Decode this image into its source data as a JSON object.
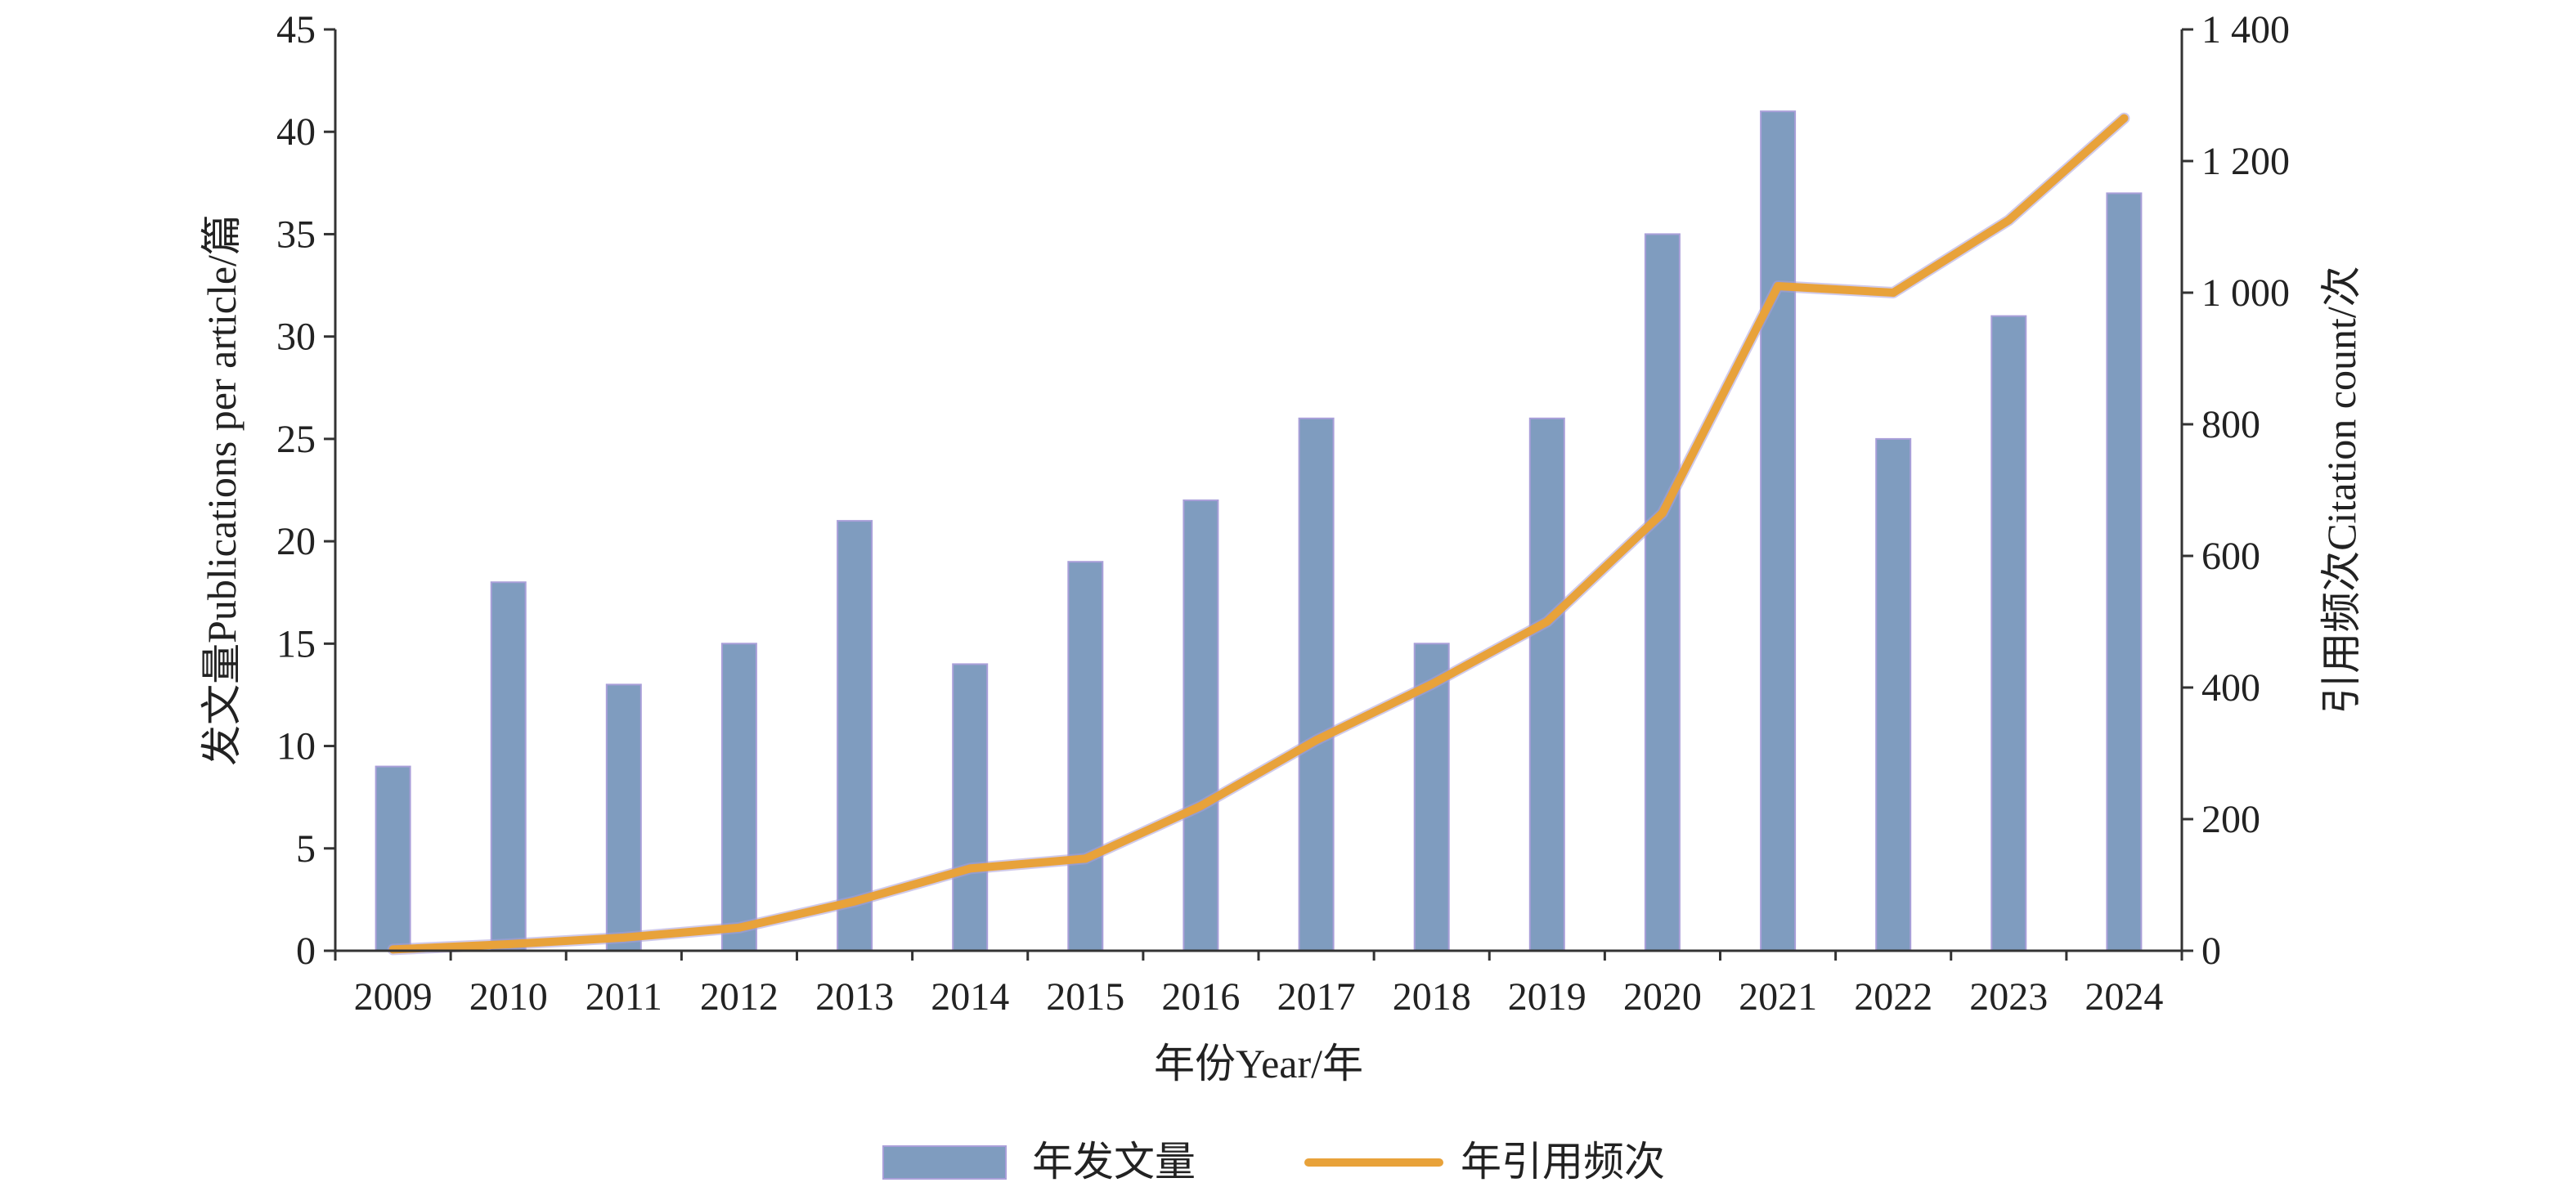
{
  "chart_data": {
    "type": "bar+line",
    "title": "",
    "categories": [
      "2009",
      "2010",
      "2011",
      "2012",
      "2013",
      "2014",
      "2015",
      "2016",
      "2017",
      "2018",
      "2019",
      "2020",
      "2021",
      "2022",
      "2023",
      "2024"
    ],
    "xlabel": "年份Year/年",
    "ylabel_left": "发文量Publications per article/篇",
    "ylabel_right": "引用频次Citation count/次",
    "ylim_left": [
      0,
      45
    ],
    "yticks_left": [
      "0",
      "5",
      "10",
      "15",
      "20",
      "25",
      "30",
      "35",
      "40",
      "45"
    ],
    "ylim_right": [
      0,
      1400
    ],
    "yticks_right": [
      "0",
      "200",
      "400",
      "600",
      "800",
      "1 000",
      "1 200",
      "1 400"
    ],
    "grid": false,
    "legend_position": "bottom-center",
    "series": [
      {
        "name": "年发文量",
        "type": "bar",
        "axis": "left",
        "color": "#7f9cbf",
        "values": [
          9,
          18,
          13,
          15,
          21,
          14,
          19,
          22,
          26,
          15,
          26,
          35,
          41,
          25,
          31,
          37
        ]
      },
      {
        "name": "年引用频次",
        "type": "line",
        "axis": "right",
        "color": "#e8a23a",
        "values": [
          2,
          10,
          20,
          35,
          75,
          125,
          140,
          220,
          320,
          405,
          500,
          665,
          1010,
          1000,
          1110,
          1265
        ]
      }
    ]
  }
}
